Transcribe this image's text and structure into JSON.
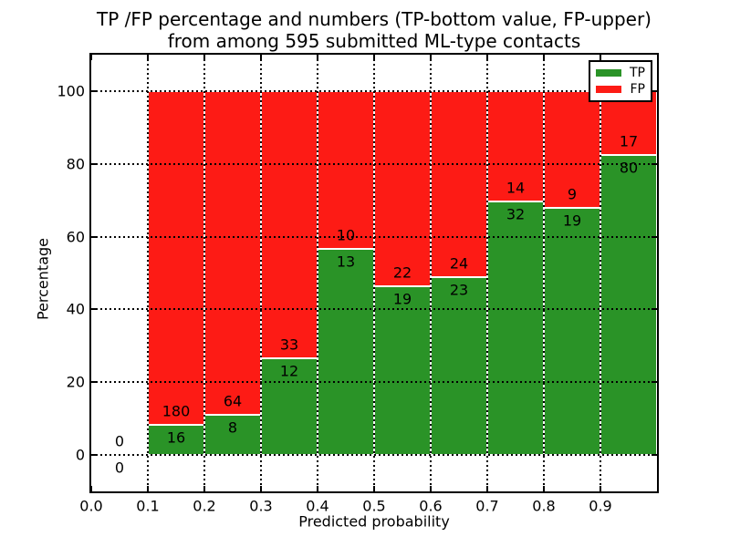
{
  "figure": {
    "background": "#ffffff",
    "title_line1": "TP /FP percentage and numbers (TP-bottom value, FP-upper)",
    "title_line2": "from among 595 submitted ML-type contacts"
  },
  "chart_data": {
    "type": "bar",
    "stacked": true,
    "title": "TP /FP percentage and numbers (TP-bottom value, FP-upper) from among 595 submitted ML-type contacts",
    "xlabel": "Predicted probability",
    "ylabel": "Percentage",
    "total_contacts": 595,
    "xlim": [
      0.0,
      1.0
    ],
    "ylim": [
      -10,
      110
    ],
    "x_ticks": [
      "0.0",
      "0.1",
      "0.2",
      "0.3",
      "0.4",
      "0.5",
      "0.6",
      "0.7",
      "0.8",
      "0.9"
    ],
    "y_ticks": [
      0,
      20,
      40,
      60,
      80,
      100
    ],
    "grid": true,
    "grid_style": "dotted",
    "legend_position": "upper right",
    "series": [
      {
        "name": "TP",
        "color": "#2a9327"
      },
      {
        "name": "FP",
        "color": "#fd1b15"
      }
    ],
    "bins": [
      {
        "range": [
          0.0,
          0.1
        ],
        "tp": 0,
        "fp": 0
      },
      {
        "range": [
          0.1,
          0.2
        ],
        "tp": 16,
        "fp": 180
      },
      {
        "range": [
          0.2,
          0.3
        ],
        "tp": 8,
        "fp": 64
      },
      {
        "range": [
          0.3,
          0.4
        ],
        "tp": 12,
        "fp": 33
      },
      {
        "range": [
          0.4,
          0.5
        ],
        "tp": 13,
        "fp": 10
      },
      {
        "range": [
          0.5,
          0.6
        ],
        "tp": 19,
        "fp": 22
      },
      {
        "range": [
          0.6,
          0.7
        ],
        "tp": 23,
        "fp": 24
      },
      {
        "range": [
          0.7,
          0.8
        ],
        "tp": 32,
        "fp": 14
      },
      {
        "range": [
          0.8,
          0.9
        ],
        "tp": 19,
        "fp": 9
      },
      {
        "range": [
          0.9,
          1.0
        ],
        "tp": 80,
        "fp": 17
      }
    ]
  }
}
